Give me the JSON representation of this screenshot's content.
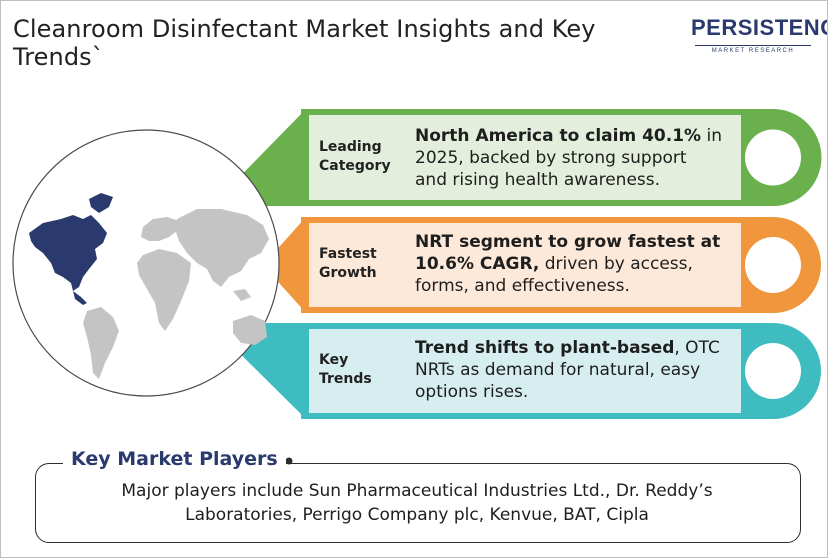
{
  "header": {
    "title": "Cleanroom Disinfectant Market Insights and Key Trends`"
  },
  "logo": {
    "brand": "PERSISTENCE",
    "tagline": "MARKET RESEARCH"
  },
  "insights": [
    {
      "label_line1": "Leading",
      "label_line2": "Category",
      "bold_text": "North America to claim 40.1%",
      "line1_rest": " in",
      "line2": "2025, backed by strong support",
      "line3": "and rising health awareness.",
      "color": "#6ab04c"
    },
    {
      "label_line1": "Fastest",
      "label_line2": "Growth",
      "bold_line1": "NRT segment to grow fastest at",
      "bold_line2": "10.6% CAGR,",
      "line2_rest": " driven by access,",
      "line3": "forms, and effectiveness.",
      "color": "#f0963c"
    },
    {
      "label_line1": "Key",
      "label_line2": "Trends",
      "bold_text": "Trend shifts to plant-based",
      "line1_rest": ", OTC",
      "line2": "NRTs as demand for natural, easy",
      "line3": "options rises.",
      "color": "#3fbcc0"
    }
  ],
  "players": {
    "heading": "Key Market Players",
    "line1": "Major players include Sun Pharmaceutical Industries Ltd., Dr. Reddy’s",
    "line2": "Laboratories, Perrigo Company plc, Kenvue, BAT, Cipla"
  },
  "colors": {
    "green": "#6ab04c",
    "green_fill": "#e3efdc",
    "orange": "#f0963c",
    "orange_fill": "#fde9d9",
    "teal": "#3fbcc0",
    "teal_fill": "#d6eef0",
    "navy": "#2a3a6e",
    "map_gray": "#c4c4c4"
  }
}
